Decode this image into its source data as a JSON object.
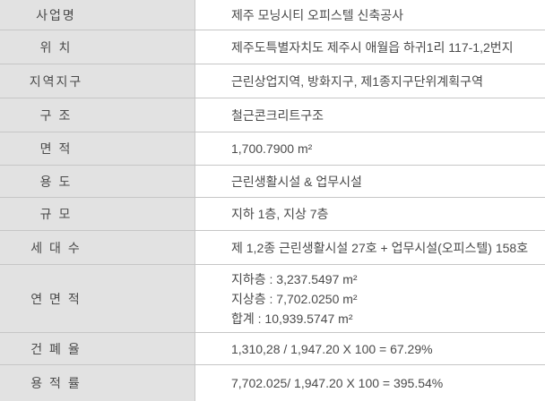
{
  "table": {
    "rows": [
      {
        "label": "사업명",
        "value": "제주 모닝시티 오피스텔 신축공사"
      },
      {
        "label": "위 치",
        "value": "제주도특별자치도 제주시 애월읍 하귀1리 117-1,2번지"
      },
      {
        "label": "지역지구",
        "value": "근린상업지역, 방화지구, 제1종지구단위계획구역"
      },
      {
        "label": "구 조",
        "value": "철근콘크리트구조"
      },
      {
        "label": "면 적",
        "value": "1,700.7900 m²"
      },
      {
        "label": "용 도",
        "value": "근린생활시설 & 업무시설"
      },
      {
        "label": "규 모",
        "value": "지하 1층, 지상 7층"
      },
      {
        "label": "세 대 수",
        "value": "제 1,2종 근린생활시설 27호 + 업무시설(오피스텔) 158호"
      },
      {
        "label": "연 면 적",
        "lines": [
          "지하층 : 3,237.5497 m²",
          "지상층 : 7,702.0250 m²",
          "합계 : 10,939.5747 m²"
        ]
      },
      {
        "label": "건 폐 율",
        "value": "1,310,28 / 1,947.20 X 100 = 67.29%"
      },
      {
        "label": "용 적 률",
        "value": "7,702.025/ 1,947.20 X 100 = 395.54%"
      }
    ],
    "colors": {
      "label_bg": "#e2e2e2",
      "value_bg": "#ffffff",
      "border": "#c6c6c6",
      "text": "#4a4a4a"
    }
  }
}
